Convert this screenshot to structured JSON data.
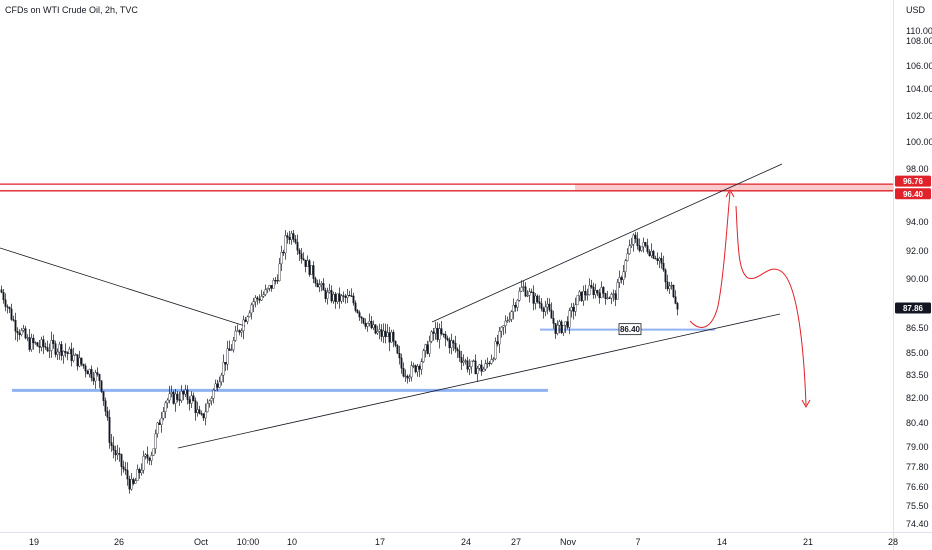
{
  "header": {
    "title": "CFDs on WTI Crude Oil, 2h, TVC",
    "currency": "USD"
  },
  "colors": {
    "candle": "#131722",
    "trendline": "#131722",
    "support": "#8fb3f2",
    "resistance": "#e0222a",
    "resistance_fill": "#f7c4c6",
    "projection": "#e0222a",
    "last_price_bg": "#131722"
  },
  "chart_data": {
    "type": "candlestick",
    "title": "CFDs on WTI Crude Oil, 2h, TVC",
    "y_axis": {
      "unit": "USD",
      "range": [
        73.7,
        111.3
      ],
      "ticks": [
        74.4,
        75.5,
        76.6,
        77.8,
        79.0,
        80.4,
        82.0,
        83.5,
        85.0,
        86.5,
        88.0,
        90.0,
        92.0,
        94.0,
        96.0,
        98.0,
        100.0,
        102.0,
        104.0,
        106.0,
        108.0,
        110.0
      ],
      "tick_labels": [
        "74.40",
        "75.50",
        "76.60",
        "77.80",
        "79.00",
        "80.40",
        "82.00",
        "83.50",
        "85.00",
        "86.50",
        "88.00",
        "90.00",
        "92.00",
        "94.00",
        "96.00",
        "98.00",
        "100.00",
        "102.00",
        "104.00",
        "106.00",
        "108.00",
        "110.00"
      ]
    },
    "x_axis": {
      "tick_labels": [
        "19",
        "26",
        "Oct",
        "10:00",
        "10",
        "17",
        "24",
        "27",
        "Nov",
        "7",
        "14",
        "21",
        "28"
      ]
    },
    "price_path": [
      [
        0,
        89.2
      ],
      [
        14,
        86.8
      ],
      [
        28,
        85.6
      ],
      [
        40,
        85.4
      ],
      [
        60,
        85.3
      ],
      [
        75,
        84.6
      ],
      [
        92,
        83.6
      ],
      [
        100,
        83.2
      ],
      [
        110,
        79.2
      ],
      [
        120,
        78.0
      ],
      [
        132,
        76.5
      ],
      [
        142,
        78.0
      ],
      [
        152,
        78.8
      ],
      [
        164,
        81.8
      ],
      [
        172,
        82.0
      ],
      [
        182,
        82.2
      ],
      [
        192,
        81.9
      ],
      [
        200,
        80.5
      ],
      [
        214,
        82.6
      ],
      [
        224,
        84.4
      ],
      [
        240,
        86.6
      ],
      [
        252,
        88.3
      ],
      [
        266,
        89.0
      ],
      [
        276,
        90.0
      ],
      [
        286,
        93.0
      ],
      [
        294,
        93.2
      ],
      [
        300,
        91.8
      ],
      [
        312,
        90.4
      ],
      [
        324,
        88.9
      ],
      [
        336,
        88.5
      ],
      [
        350,
        88.6
      ],
      [
        362,
        87.2
      ],
      [
        375,
        86.2
      ],
      [
        390,
        86.0
      ],
      [
        402,
        83.8
      ],
      [
        410,
        83.7
      ],
      [
        420,
        84.4
      ],
      [
        434,
        86.3
      ],
      [
        452,
        85.5
      ],
      [
        468,
        84.1
      ],
      [
        484,
        83.9
      ],
      [
        496,
        85.4
      ],
      [
        510,
        87.6
      ],
      [
        522,
        89.4
      ],
      [
        532,
        88.6
      ],
      [
        546,
        87.9
      ],
      [
        556,
        86.4
      ],
      [
        566,
        86.8
      ],
      [
        578,
        88.6
      ],
      [
        590,
        89.2
      ],
      [
        602,
        89.0
      ],
      [
        614,
        88.6
      ],
      [
        622,
        90.5
      ],
      [
        632,
        92.8
      ],
      [
        640,
        92.3
      ],
      [
        646,
        92.3
      ],
      [
        652,
        91.9
      ],
      [
        660,
        91.4
      ],
      [
        666,
        89.3
      ],
      [
        672,
        89.3
      ],
      [
        678,
        87.9
      ]
    ],
    "annotations": {
      "last_price": "87.86",
      "resistance_labels": [
        "96.76",
        "96.40"
      ],
      "support_label": "86.40",
      "resistance_zone": [
        96.4,
        96.76
      ],
      "support_levels": [
        82.5,
        86.4
      ]
    }
  }
}
